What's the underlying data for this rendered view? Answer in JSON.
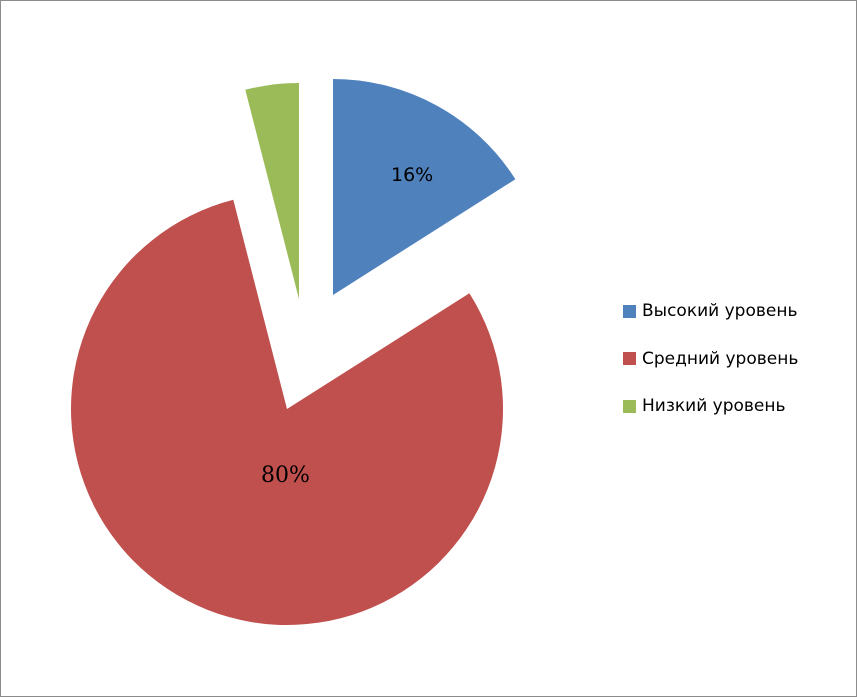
{
  "chart_data": {
    "type": "pie",
    "title": "",
    "exploded": true,
    "start_angle_deg": 0,
    "direction": "clockwise",
    "slices": [
      {
        "name": "Высокий уровень",
        "value": 16,
        "label": "16%",
        "color": "#4F81BD"
      },
      {
        "name": "Средний уровень",
        "value": 80,
        "label": "80%",
        "color": "#C0504D"
      },
      {
        "name": "Низкий уровень",
        "value": 4,
        "label": "",
        "color": "#9BBB59"
      }
    ],
    "legend": {
      "position": "right",
      "entries": [
        "Высокий уровень",
        "Средний уровень",
        "Низкий уровень"
      ]
    }
  }
}
